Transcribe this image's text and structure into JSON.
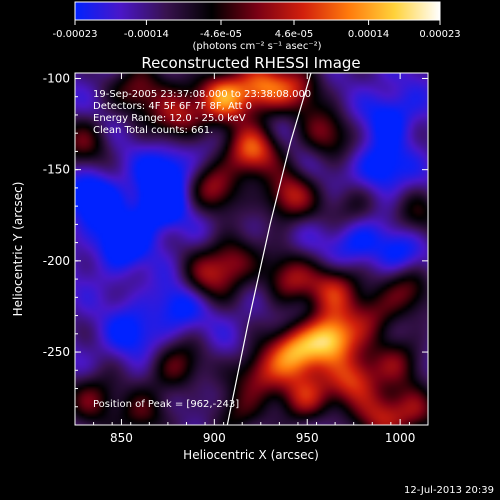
{
  "chart_data": {
    "type": "heatmap",
    "title": "Reconstructed RHESSI Image",
    "xlabel": "Heliocentric X (arcsec)",
    "ylabel": "Heliocentric Y (arcsec)",
    "xlim": [
      825,
      1015
    ],
    "ylim": [
      -290,
      -97
    ],
    "x_ticks": [
      850,
      900,
      950,
      1000
    ],
    "y_ticks": [
      -100,
      -150,
      -200,
      -250
    ],
    "colorbar": {
      "min": -0.00023,
      "max": 0.00023,
      "ticks": [
        "-0.00023",
        "-0.00014",
        "-4.6e-05",
        "4.6e-05",
        "0.00014",
        "0.00023"
      ],
      "label": "(photons cm⁻² s⁻¹ asec⁻²)",
      "colors": [
        "#0022ff",
        "#4a16c8",
        "#38124e",
        "#000000",
        "#7a0014",
        "#d2200c",
        "#ff7a0c",
        "#ffd23a",
        "#ffffff"
      ]
    },
    "annotations": [
      "19-Sep-2005 23:37:08.000 to 23:38:08.000",
      "Detectors: 4F 5F 6F 7F 8F, Att 0",
      "Energy Range: 12.0 - 25.0 keV",
      "Clean    Total counts: 661."
    ],
    "peak": {
      "label": "Position of Peak = [962,-243]",
      "x": 962,
      "y": -243
    },
    "limb_curve": {
      "x": [
        907,
        918,
        930,
        941,
        952
      ],
      "y": [
        -290,
        -235,
        -180,
        -135,
        -97
      ]
    },
    "sources": [
      {
        "x": 962,
        "y": -243,
        "v": 1.0
      },
      {
        "x": 943,
        "y": -250,
        "v": 0.75
      },
      {
        "x": 975,
        "y": -265,
        "v": 0.7
      },
      {
        "x": 948,
        "y": -275,
        "v": 0.6
      },
      {
        "x": 990,
        "y": -285,
        "v": 0.55
      },
      {
        "x": 925,
        "y": -262,
        "v": 0.55
      },
      {
        "x": 965,
        "y": -215,
        "v": 0.6
      },
      {
        "x": 940,
        "y": -210,
        "v": 0.5
      },
      {
        "x": 985,
        "y": -230,
        "v": 0.45
      },
      {
        "x": 1000,
        "y": -255,
        "v": 0.4
      },
      {
        "x": 920,
        "y": -140,
        "v": 0.75
      },
      {
        "x": 940,
        "y": -165,
        "v": 0.6
      },
      {
        "x": 905,
        "y": -110,
        "v": 0.8
      },
      {
        "x": 925,
        "y": -105,
        "v": 0.7
      },
      {
        "x": 880,
        "y": -120,
        "v": 0.6
      },
      {
        "x": 860,
        "y": -105,
        "v": 0.5
      },
      {
        "x": 900,
        "y": -160,
        "v": 0.5
      },
      {
        "x": 945,
        "y": -105,
        "v": 0.5
      },
      {
        "x": 960,
        "y": -130,
        "v": 0.45
      },
      {
        "x": 910,
        "y": -200,
        "v": 0.5
      },
      {
        "x": 830,
        "y": -135,
        "v": 0.4
      },
      {
        "x": 1005,
        "y": -215,
        "v": 0.4
      },
      {
        "x": 895,
        "y": -210,
        "v": 0.4
      },
      {
        "x": 880,
        "y": -258,
        "v": 0.45
      },
      {
        "x": 860,
        "y": -285,
        "v": 0.4
      },
      {
        "x": 835,
        "y": -275,
        "v": 0.45
      },
      {
        "x": 910,
        "y": -285,
        "v": 0.35
      },
      {
        "x": 1008,
        "y": -283,
        "v": 0.4
      },
      {
        "x": 1010,
        "y": -175,
        "v": 0.3
      },
      {
        "x": 975,
        "y": -170,
        "v": 0.3
      },
      {
        "x": 855,
        "y": -240,
        "v": -0.25
      },
      {
        "x": 975,
        "y": -190,
        "v": -0.3
      },
      {
        "x": 850,
        "y": -190,
        "v": -0.4
      },
      {
        "x": 870,
        "y": -170,
        "v": -0.45
      },
      {
        "x": 835,
        "y": -165,
        "v": -0.4
      },
      {
        "x": 880,
        "y": -225,
        "v": -0.3
      },
      {
        "x": 995,
        "y": -120,
        "v": -0.3
      },
      {
        "x": 990,
        "y": -150,
        "v": -0.35
      },
      {
        "x": 1000,
        "y": -195,
        "v": -0.25
      },
      {
        "x": 875,
        "y": -150,
        "v": -0.35
      }
    ]
  },
  "footer": {
    "timestamp": "12-Jul-2013 20:39"
  }
}
